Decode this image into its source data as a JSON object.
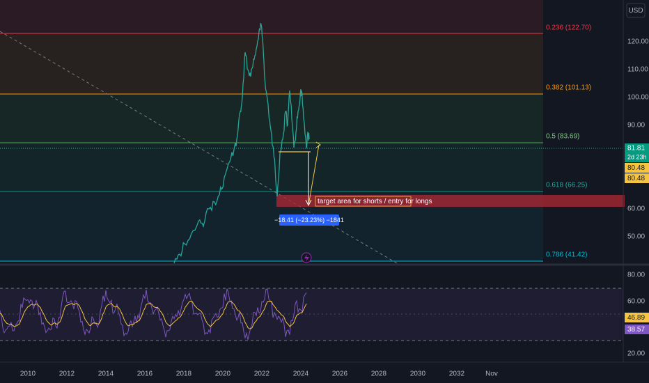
{
  "price_axis": {
    "currency": "USD",
    "labels": [
      "120.00",
      "110.00",
      "100.00",
      "90.00",
      "60.00",
      "50.00"
    ]
  },
  "fib_levels": [
    "0.236 (122.70)",
    "0.382 (101.13)",
    "0.5 (83.69)",
    "0.618 (66.25)",
    "0.786 (41.42)"
  ],
  "price_badges": {
    "last": "81.81",
    "countdown": "2d 23h",
    "level_a": "80.48",
    "level_b": "80.48"
  },
  "annotations": {
    "target": "target area for shorts / entry for longs",
    "measure": "−18.41 (−23.23%) −1841"
  },
  "rsi_axis": {
    "labels": [
      "80.00",
      "60.00",
      "20.00"
    ],
    "badges": {
      "ma": "46.89",
      "rsi": "38.57"
    }
  },
  "time_axis": [
    "2010",
    "2012",
    "2014",
    "2016",
    "2018",
    "2020",
    "2022",
    "2024",
    "2026",
    "2028",
    "2030",
    "2032",
    "Nov"
  ]
}
